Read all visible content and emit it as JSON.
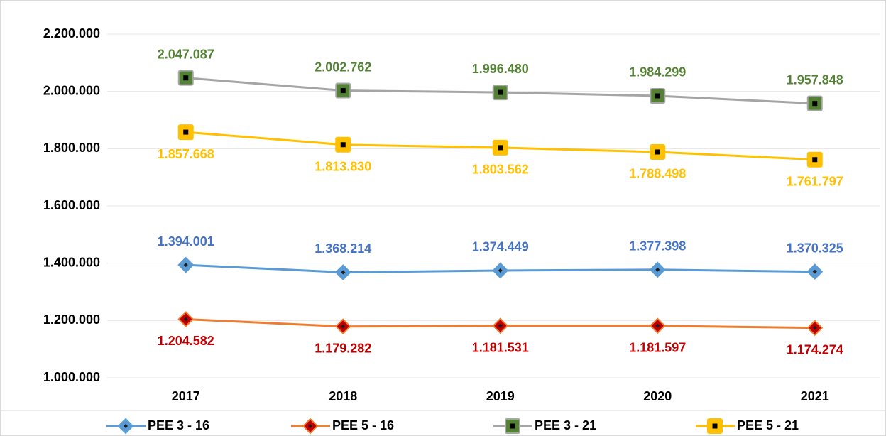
{
  "chart_data": {
    "type": "line",
    "categories": [
      "2017",
      "2018",
      "2019",
      "2020",
      "2021"
    ],
    "ylim": [
      1000000,
      2200000
    ],
    "yticks": [
      {
        "value": 1000000,
        "label": "1.000.000"
      },
      {
        "value": 1200000,
        "label": "1.200.000"
      },
      {
        "value": 1400000,
        "label": "1.400.000"
      },
      {
        "value": 1600000,
        "label": "1.600.000"
      },
      {
        "value": 1800000,
        "label": "1.800.000"
      },
      {
        "value": 2000000,
        "label": "2.000.000"
      },
      {
        "value": 2200000,
        "label": "2.200.000"
      }
    ],
    "grid": true,
    "legend": "bottom",
    "series": [
      {
        "name": "PEE 3 - 16",
        "color": "#5b9bd5",
        "marker": "diamond",
        "marker_color": "#5b9bd5",
        "label_color": "#4472c4",
        "label_position": "above",
        "values": [
          1394001,
          1368214,
          1374449,
          1377398,
          1370325
        ],
        "value_labels": [
          "1.394.001",
          "1.368.214",
          "1.374.449",
          "1.377.398",
          "1.370.325"
        ]
      },
      {
        "name": "PEE 5 - 16",
        "color": "#ed7d31",
        "marker": "diamond",
        "marker_color": "#c00000",
        "label_color": "#c00000",
        "label_position": "below",
        "values": [
          1204582,
          1179282,
          1181531,
          1181597,
          1174274
        ],
        "value_labels": [
          "1.204.582",
          "1.179.282",
          "1.181.531",
          "1.181.597",
          "1.174.274"
        ]
      },
      {
        "name": "PEE 3 - 21",
        "color": "#a5a5a5",
        "marker": "square",
        "marker_color": "#548235",
        "label_color": "#548235",
        "label_position": "above",
        "values": [
          2047087,
          2002762,
          1996480,
          1984299,
          1957848
        ],
        "value_labels": [
          "2.047.087",
          "2.002.762",
          "1.996.480",
          "1.984.299",
          "1.957.848"
        ]
      },
      {
        "name": "PEE 5 - 21",
        "color": "#ffc000",
        "marker": "square",
        "marker_color": "#ffc000",
        "label_color": "#ffc000",
        "label_position": "below",
        "values": [
          1857668,
          1813830,
          1803562,
          1788498,
          1761797
        ],
        "value_labels": [
          "1.857.668",
          "1.813.830",
          "1.803.562",
          "1.788.498",
          "1.761.797"
        ]
      }
    ]
  }
}
